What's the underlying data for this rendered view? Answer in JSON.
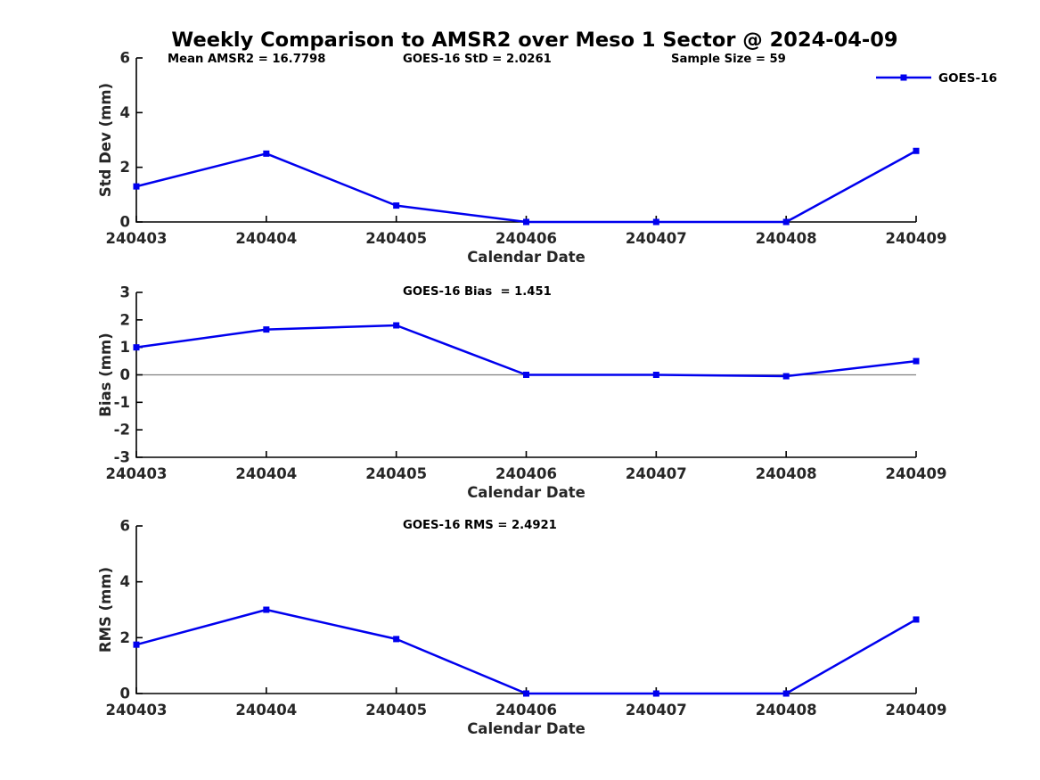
{
  "title": "Weekly Comparison to AMSR2 over Meso 1 Sector @ 2024-04-09",
  "legend": {
    "label": "GOES-16",
    "series_color": "#0000EE"
  },
  "colors": {
    "line": "#0000EE",
    "axis": "#000000",
    "tick_text": "#262626",
    "zero_line": "#808080",
    "background": "#FFFFFF"
  },
  "chart_data": [
    {
      "type": "line",
      "subplot": "std-dev",
      "annotations": [
        "Mean AMSR2 = 16.7798",
        "GOES-16 StD = 2.0261",
        "Sample Size = 59"
      ],
      "categories": [
        "240403",
        "240404",
        "240405",
        "240406",
        "240407",
        "240408",
        "240409"
      ],
      "series": [
        {
          "name": "GOES-16",
          "values": [
            1.3,
            2.5,
            0.6,
            0,
            0,
            0,
            2.6
          ]
        }
      ],
      "xlabel": "Calendar Date",
      "ylabel": "Std Dev (mm)",
      "ylim": [
        0,
        6
      ],
      "yticks": [
        0,
        2,
        4,
        6
      ],
      "grid": false,
      "legend_position": "top-right"
    },
    {
      "type": "line",
      "subplot": "bias",
      "annotations": [
        "GOES-16 Bias  = 1.451"
      ],
      "categories": [
        "240403",
        "240404",
        "240405",
        "240406",
        "240407",
        "240408",
        "240409"
      ],
      "series": [
        {
          "name": "GOES-16",
          "values": [
            1.0,
            1.65,
            1.8,
            0,
            0,
            -0.05,
            0.5
          ]
        }
      ],
      "xlabel": "Calendar Date",
      "ylabel": "Bias (mm)",
      "ylim": [
        -3,
        3
      ],
      "yticks": [
        -3,
        -2,
        -1,
        0,
        1,
        2,
        3
      ],
      "zero_line": true,
      "grid": false
    },
    {
      "type": "line",
      "subplot": "rms",
      "annotations": [
        "GOES-16 RMS = 2.4921"
      ],
      "categories": [
        "240403",
        "240404",
        "240405",
        "240406",
        "240407",
        "240408",
        "240409"
      ],
      "series": [
        {
          "name": "GOES-16",
          "values": [
            1.75,
            3.0,
            1.95,
            0,
            0,
            0,
            2.65
          ]
        }
      ],
      "xlabel": "Calendar Date",
      "ylabel": "RMS (mm)",
      "ylim": [
        0,
        6
      ],
      "yticks": [
        0,
        2,
        4,
        6
      ],
      "grid": false
    }
  ]
}
